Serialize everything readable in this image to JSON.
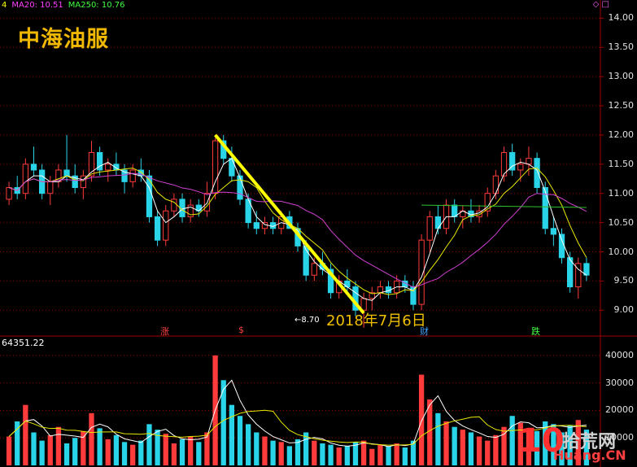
{
  "header": {
    "ma_prefix": "4",
    "ma20_label": "MA20: 10.51",
    "ma250_label": "MA250: 10.76",
    "stock_name": "中海油服",
    "top_icons": "◇ □"
  },
  "annotations": {
    "date_text": "2018年7月6日",
    "low_text": "←8.70"
  },
  "volume_panel": {
    "title": "64351.22"
  },
  "markers": [
    {
      "text": "涨",
      "color": "#ff4040"
    },
    {
      "text": "$",
      "color": "#ff4040"
    },
    {
      "text": "财",
      "color": "#40a0ff"
    },
    {
      "text": "跌",
      "color": "#40ff40"
    }
  ],
  "watermark": {
    "num": "10",
    "cn": "拾荒网",
    "url": "Huang.CN"
  },
  "colors": {
    "up": "#ff3b3b",
    "down": "#29d4e8",
    "ma_white": "#ffffff",
    "ma_yellow": "#e8e800",
    "ma_magenta": "#d040d0",
    "ma_green": "#30c030",
    "trend": "#ffff00",
    "grid": "#a00000"
  },
  "chart_data": [
    {
      "type": "candlestick",
      "title": "中海油服",
      "y_ticks": [
        "14.00",
        "13.50",
        "13.00",
        "12.50",
        "12.00",
        "11.50",
        "11.00",
        "10.50",
        "10.00",
        "9.50",
        "9.00"
      ],
      "ylim": [
        8.6,
        14.2
      ],
      "annotations": [
        "2018年7月6日",
        "8.70"
      ],
      "ohlc": [
        [
          10.9,
          11.2,
          10.8,
          11.1
        ],
        [
          11.1,
          11.3,
          10.9,
          11.0
        ],
        [
          11.0,
          11.6,
          10.9,
          11.5
        ],
        [
          11.5,
          11.8,
          11.3,
          11.4
        ],
        [
          11.4,
          11.5,
          10.9,
          11.0
        ],
        [
          11.0,
          11.3,
          10.8,
          11.2
        ],
        [
          11.2,
          11.5,
          11.1,
          11.4
        ],
        [
          11.4,
          12.0,
          11.2,
          11.3
        ],
        [
          11.3,
          11.5,
          11.0,
          11.1
        ],
        [
          11.1,
          11.4,
          10.9,
          11.3
        ],
        [
          11.3,
          11.9,
          11.2,
          11.7
        ],
        [
          11.7,
          11.8,
          11.3,
          11.4
        ],
        [
          11.4,
          11.6,
          11.2,
          11.5
        ],
        [
          11.5,
          11.7,
          11.3,
          11.4
        ],
        [
          11.4,
          11.5,
          11.0,
          11.2
        ],
        [
          11.2,
          11.5,
          11.1,
          11.4
        ],
        [
          11.4,
          11.6,
          11.2,
          11.3
        ],
        [
          11.3,
          11.4,
          10.5,
          10.6
        ],
        [
          10.6,
          10.7,
          10.1,
          10.2
        ],
        [
          10.2,
          10.8,
          10.1,
          10.7
        ],
        [
          10.7,
          11.0,
          10.6,
          10.9
        ],
        [
          10.9,
          11.0,
          10.5,
          10.6
        ],
        [
          10.6,
          10.9,
          10.5,
          10.8
        ],
        [
          10.8,
          10.9,
          10.6,
          10.7
        ],
        [
          10.7,
          11.2,
          10.6,
          11.0
        ],
        [
          11.0,
          11.95,
          10.9,
          11.9
        ],
        [
          11.9,
          12.0,
          11.5,
          11.6
        ],
        [
          11.6,
          11.8,
          11.2,
          11.3
        ],
        [
          11.3,
          11.4,
          10.8,
          10.9
        ],
        [
          10.9,
          11.0,
          10.4,
          10.5
        ],
        [
          10.5,
          10.7,
          10.3,
          10.4
        ],
        [
          10.4,
          10.6,
          10.3,
          10.5
        ],
        [
          10.5,
          10.6,
          10.3,
          10.4
        ],
        [
          10.4,
          10.7,
          10.3,
          10.6
        ],
        [
          10.6,
          10.7,
          10.4,
          10.4
        ],
        [
          10.4,
          10.5,
          10.0,
          10.1
        ],
        [
          10.1,
          10.2,
          9.5,
          9.6
        ],
        [
          9.6,
          9.9,
          9.5,
          9.8
        ],
        [
          9.8,
          10.0,
          9.6,
          9.7
        ],
        [
          9.7,
          9.8,
          9.2,
          9.3
        ],
        [
          9.3,
          9.6,
          9.2,
          9.5
        ],
        [
          9.5,
          9.7,
          9.3,
          9.4
        ],
        [
          9.4,
          9.5,
          8.9,
          9.0
        ],
        [
          9.0,
          9.3,
          8.7,
          9.2
        ],
        [
          9.2,
          9.4,
          9.0,
          9.3
        ],
        [
          9.3,
          9.5,
          9.2,
          9.4
        ],
        [
          9.4,
          9.5,
          9.2,
          9.3
        ],
        [
          9.3,
          9.6,
          9.2,
          9.5
        ],
        [
          9.5,
          9.6,
          9.3,
          9.4
        ],
        [
          9.4,
          9.5,
          9.0,
          9.1
        ],
        [
          9.1,
          10.3,
          9.0,
          10.2
        ],
        [
          10.2,
          10.7,
          10.0,
          10.6
        ],
        [
          10.6,
          10.8,
          10.3,
          10.4
        ],
        [
          10.4,
          10.9,
          10.3,
          10.8
        ],
        [
          10.8,
          10.9,
          10.5,
          10.6
        ],
        [
          10.6,
          10.8,
          10.4,
          10.7
        ],
        [
          10.7,
          10.9,
          10.5,
          10.6
        ],
        [
          10.6,
          10.8,
          10.5,
          10.7
        ],
        [
          10.7,
          11.1,
          10.6,
          11.0
        ],
        [
          11.0,
          11.4,
          10.9,
          11.3
        ],
        [
          11.3,
          11.8,
          11.2,
          11.7
        ],
        [
          11.7,
          11.85,
          11.3,
          11.4
        ],
        [
          11.4,
          11.6,
          11.2,
          11.5
        ],
        [
          11.5,
          11.8,
          11.3,
          11.6
        ],
        [
          11.6,
          11.7,
          11.0,
          11.1
        ],
        [
          11.1,
          11.2,
          10.3,
          10.4
        ],
        [
          10.4,
          10.6,
          10.1,
          10.3
        ],
        [
          10.3,
          10.4,
          9.8,
          9.9
        ],
        [
          9.9,
          10.0,
          9.3,
          9.4
        ],
        [
          9.4,
          9.9,
          9.2,
          9.8
        ],
        [
          9.8,
          9.9,
          9.5,
          9.6
        ]
      ]
    },
    {
      "type": "bar",
      "title": "64351.22",
      "y_ticks": [
        "40000",
        "30000",
        "20000",
        "10000"
      ],
      "ylim": [
        0,
        45000
      ],
      "values": [
        10500,
        16000,
        22000,
        12000,
        9000,
        11000,
        14000,
        8000,
        10000,
        12500,
        19000,
        13500,
        9500,
        11000,
        8500,
        7500,
        9000,
        15000,
        13000,
        11500,
        8000,
        9500,
        10500,
        8500,
        12000,
        40000,
        31000,
        22000,
        18000,
        15000,
        12000,
        10500,
        9000,
        8500,
        7000,
        9500,
        12000,
        9000,
        8000,
        7500,
        6500,
        7000,
        8500,
        9000,
        6000,
        7500,
        7000,
        8000,
        6500,
        9000,
        33000,
        24000,
        19000,
        16000,
        14000,
        13000,
        12000,
        10500,
        9000,
        11000,
        14000,
        18000,
        15500,
        13000,
        12500,
        16000,
        15000,
        12000,
        14500,
        16500,
        13000
      ]
    }
  ]
}
